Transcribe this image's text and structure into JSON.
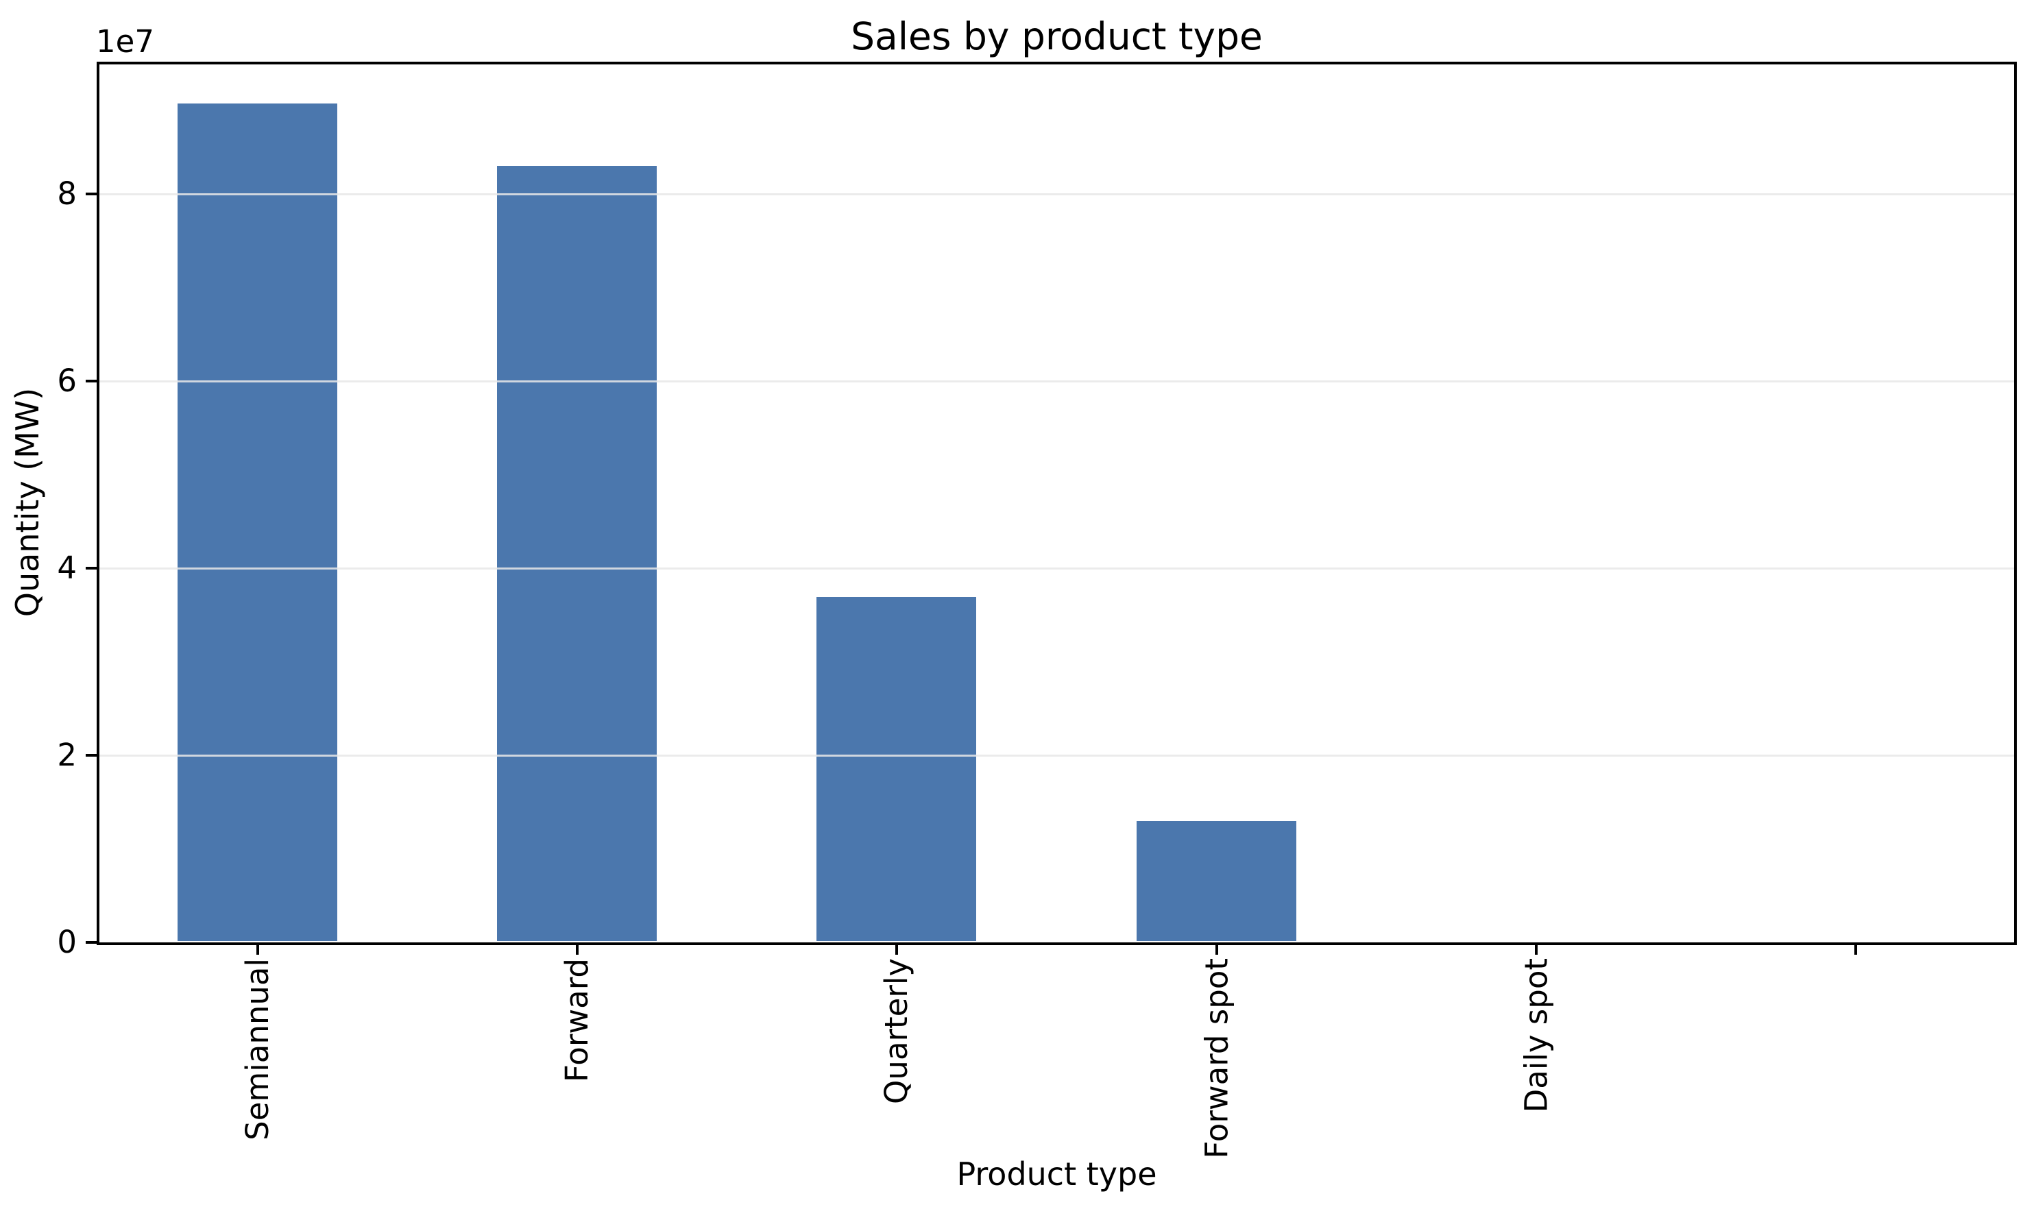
{
  "chart_data": {
    "type": "bar",
    "title": "Sales by product type",
    "xlabel": "Product type",
    "ylabel": "Quantity (MW)",
    "offset_text": "1e7",
    "categories": [
      "Semiannual",
      "Forward",
      "Quarterly",
      "Forward spot",
      "Daily spot",
      ""
    ],
    "values": [
      89500000,
      82900000,
      36800000,
      12800000,
      0,
      0
    ],
    "series_name": "Quantity",
    "ylim": [
      0,
      94000000
    ],
    "yticks": [
      0,
      20000000,
      40000000,
      60000000,
      80000000
    ],
    "ytick_labels": [
      "0",
      "2",
      "4",
      "6",
      "8"
    ],
    "xtick_rotation_degrees": 90,
    "grid": true,
    "legend": "none",
    "colors": {
      "bar": "#4b77ad",
      "gridline": "#e8e8e8",
      "spine": "#000000",
      "text": "#000000",
      "background": "#ffffff"
    }
  }
}
